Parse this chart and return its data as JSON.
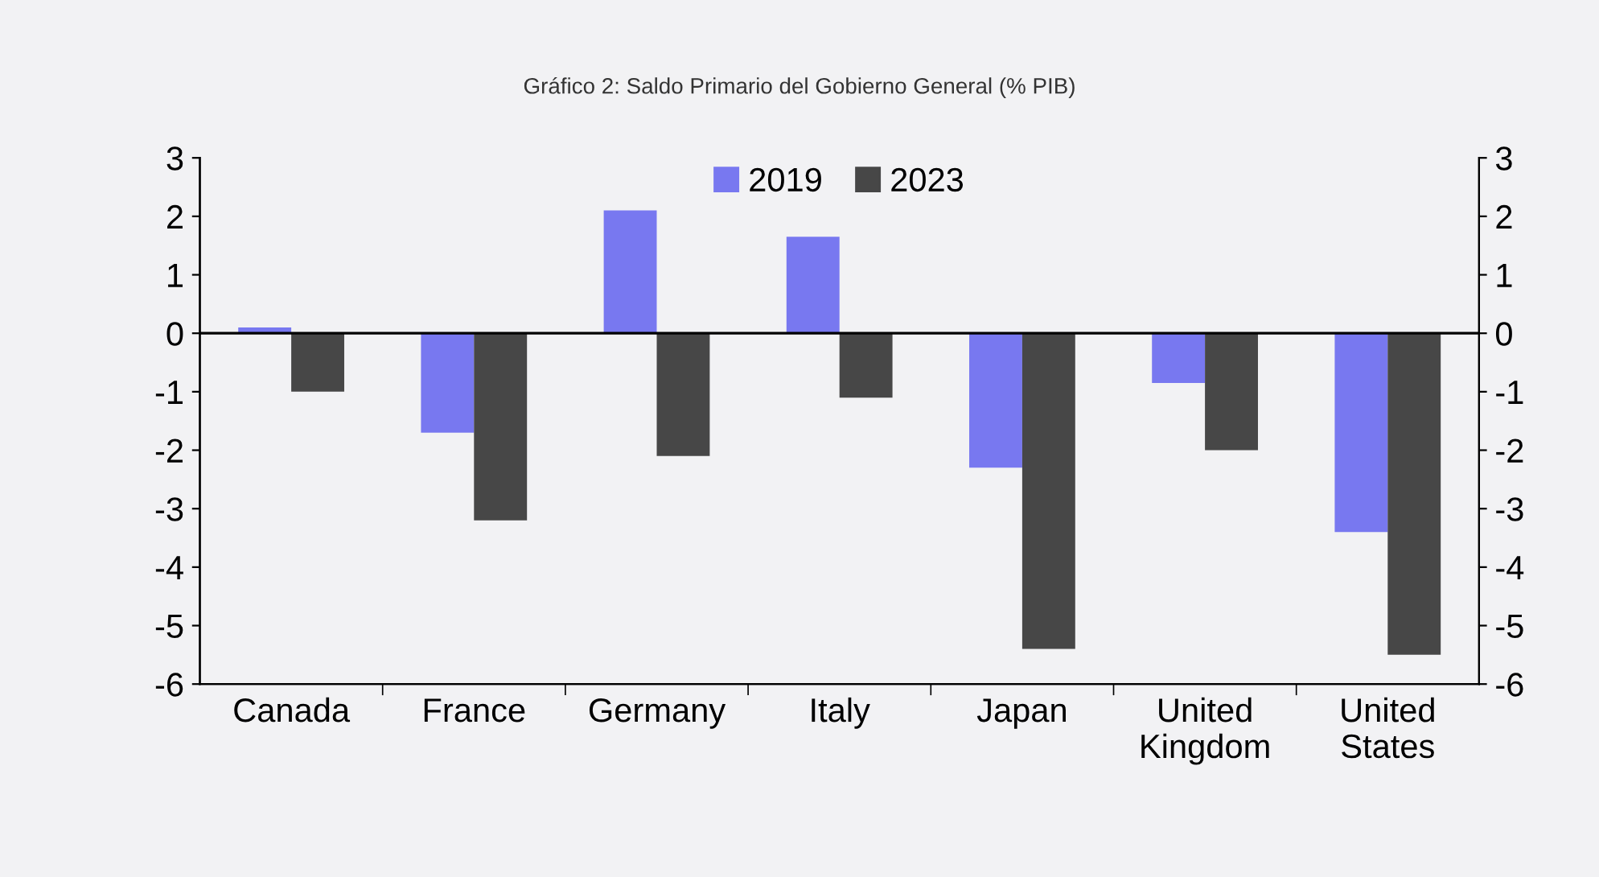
{
  "chart_data": {
    "type": "bar",
    "title": "Gráfico 2: Saldo Primario del Gobierno General (% PIB)",
    "categories": [
      "Canada",
      "France",
      "Germany",
      "Italy",
      "Japan",
      "United\nKingdom",
      "United\nStates"
    ],
    "series": [
      {
        "name": "2019",
        "color": "#7878f0",
        "values": [
          0.1,
          -1.7,
          2.1,
          1.65,
          -2.3,
          -0.85,
          -3.4
        ]
      },
      {
        "name": "2023",
        "color": "#474747",
        "values": [
          -1.0,
          -3.2,
          -2.1,
          -1.1,
          -5.4,
          -2.0,
          -5.5
        ]
      }
    ],
    "ylim": [
      -6,
      3
    ],
    "yticks": [
      -6,
      -5,
      -4,
      -3,
      -2,
      -1,
      0,
      1,
      2,
      3
    ],
    "y2lim": [
      -6,
      3
    ],
    "y2ticks": [
      -6,
      -5,
      -4,
      -3,
      -2,
      -1,
      0,
      1,
      2,
      3
    ],
    "ref_lines": [
      {
        "axis": "y",
        "value": 0,
        "color": "#000000"
      }
    ],
    "legend": "top",
    "grid": false
  }
}
